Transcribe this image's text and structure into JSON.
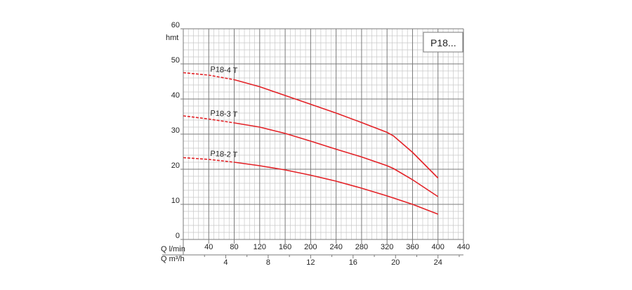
{
  "chart_data": {
    "type": "line",
    "model_label": "P18...",
    "ylabel": "hmt",
    "xlabel_primary": "Q l/min",
    "xlabel_secondary": "Q m³/h",
    "xlim": [
      0,
      440
    ],
    "ylim": [
      0,
      60
    ],
    "x_ticks": [
      "40",
      "80",
      "120",
      "160",
      "200",
      "240",
      "280",
      "320",
      "360",
      "400",
      "440"
    ],
    "x_ticks_values": [
      40,
      80,
      120,
      160,
      200,
      240,
      280,
      320,
      360,
      400,
      440
    ],
    "y_ticks": [
      "0",
      "10",
      "20",
      "30",
      "40",
      "50",
      "60"
    ],
    "y_ticks_values": [
      0,
      10,
      20,
      30,
      40,
      50,
      60
    ],
    "x2_ticks": [
      "4",
      "8",
      "12",
      "16",
      "20",
      "24"
    ],
    "x2_ticks_values": [
      4,
      8,
      12,
      16,
      20,
      24
    ],
    "grid": true,
    "series": [
      {
        "name": "P18-4 T",
        "dashed_until": 80,
        "x": [
          0,
          40,
          80,
          120,
          160,
          200,
          240,
          280,
          320,
          330,
          360,
          400
        ],
        "y": [
          47.5,
          46.8,
          45.5,
          43.5,
          41,
          38.5,
          36,
          33.3,
          30.5,
          29.5,
          24.8,
          17.5
        ]
      },
      {
        "name": "P18-3 T",
        "dashed_until": 80,
        "x": [
          0,
          40,
          80,
          120,
          160,
          200,
          240,
          280,
          320,
          330,
          360,
          400
        ],
        "y": [
          35.2,
          34.3,
          33.2,
          32,
          30.2,
          28,
          25.7,
          23.5,
          21,
          20.2,
          17,
          12.2
        ]
      },
      {
        "name": "P18-2 T",
        "dashed_until": 80,
        "x": [
          0,
          40,
          80,
          120,
          160,
          200,
          240,
          280,
          320,
          360,
          400
        ],
        "y": [
          23.3,
          22.8,
          22,
          21,
          19.8,
          18.3,
          16.6,
          14.6,
          12.4,
          10,
          7.2
        ]
      }
    ],
    "colors": {
      "curve": "#e32227",
      "grid_major": "#7a7a7a",
      "grid_minor": "#c8c8c8"
    }
  }
}
